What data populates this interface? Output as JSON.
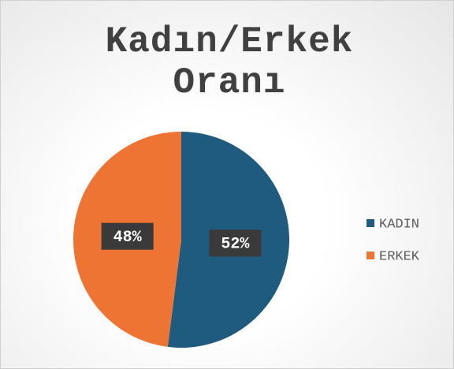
{
  "chart_data": {
    "type": "pie",
    "title": "Kadın/Erkek Oranı",
    "categories": [
      "KADIN",
      "ERKEK"
    ],
    "values": [
      52,
      48
    ],
    "value_labels": [
      "52%",
      "48%"
    ],
    "colors": [
      "#1f5b7e",
      "#ed7433"
    ],
    "legend": "right"
  }
}
